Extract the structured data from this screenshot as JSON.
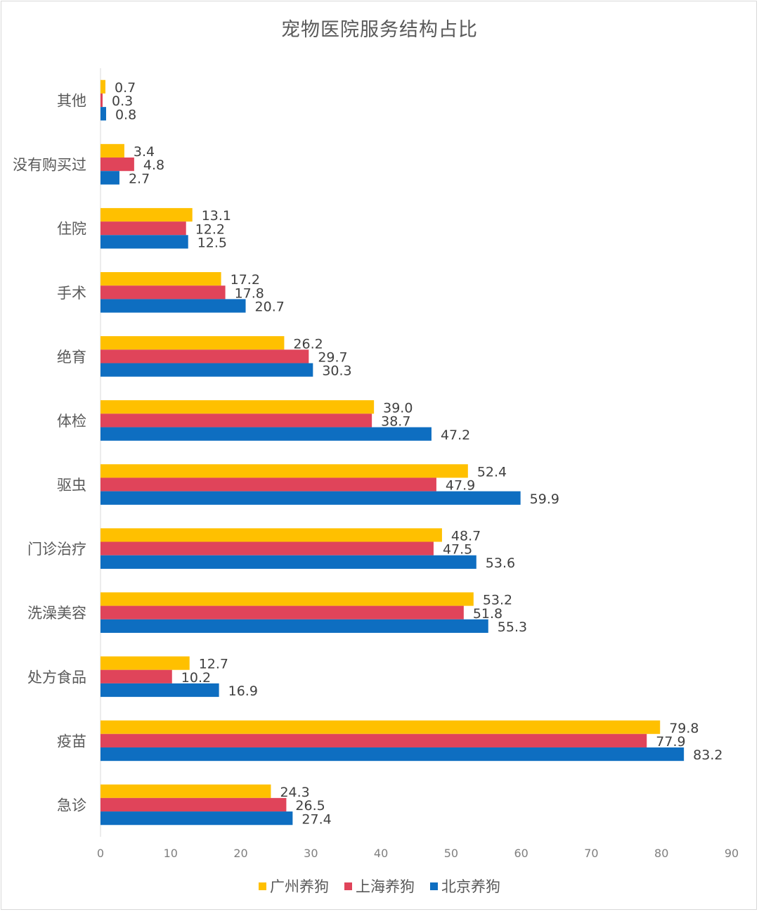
{
  "chart_data": {
    "type": "bar",
    "orientation": "horizontal",
    "title": "宠物医院服务结构占比",
    "categories": [
      "其他",
      "没有购买过",
      "住院",
      "手术",
      "绝育",
      "体检",
      "驱虫",
      "门诊治疗",
      "洗澡美容",
      "处方食品",
      "疫苗",
      "急诊"
    ],
    "series": [
      {
        "name": "广州养狗",
        "color": "#FFC000",
        "values": [
          "0.7",
          "3.4",
          "13.1",
          "17.2",
          "26.2",
          "39.0",
          "52.4",
          "48.7",
          "53.2",
          "12.7",
          "79.8",
          "24.3"
        ]
      },
      {
        "name": "上海养狗",
        "color": "#E0445A",
        "values": [
          "0.3",
          "4.8",
          "12.2",
          "17.8",
          "29.7",
          "38.7",
          "47.9",
          "47.5",
          "51.8",
          "10.2",
          "77.9",
          "26.5"
        ]
      },
      {
        "name": "北京养狗",
        "color": "#0E6EC1",
        "values": [
          "0.8",
          "2.7",
          "12.5",
          "20.7",
          "30.3",
          "47.2",
          "59.9",
          "53.6",
          "55.3",
          "16.9",
          "83.2",
          "27.4"
        ]
      }
    ],
    "xlim": [
      0,
      90
    ],
    "xticks": [
      "0",
      "10",
      "20",
      "30",
      "40",
      "50",
      "60",
      "70",
      "80",
      "90"
    ],
    "grid": false,
    "legend_position": "bottom",
    "data_labels": true
  }
}
